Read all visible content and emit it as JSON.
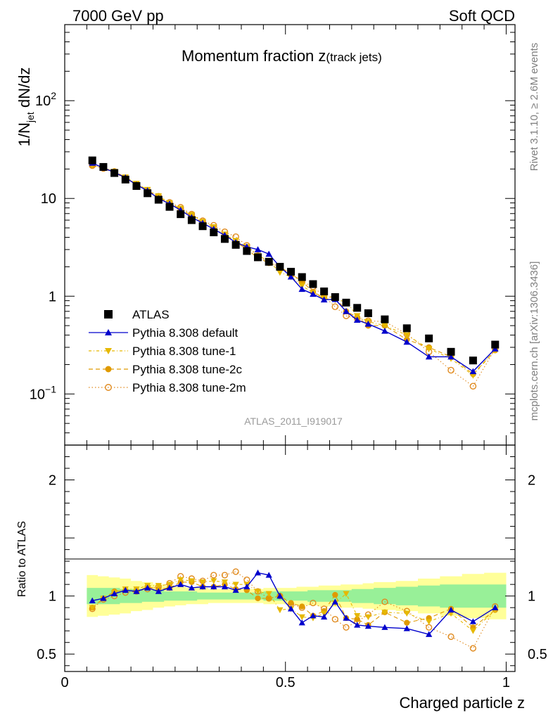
{
  "header": {
    "left": "7000 GeV pp",
    "right": "Soft QCD"
  },
  "side_labels": {
    "rivet": "Rivet 3.1.10, ≥ 2.6M events",
    "source": "mcplots.cern.ch [arXiv:1306.3436]"
  },
  "colors": {
    "atlas": "#000000",
    "default": "#0000cc",
    "tune1": "#e6b800",
    "tune2c": "#e09a00",
    "tune2m": "#e08a1e",
    "band_inner": "#98f098",
    "band_outer": "#ffff99"
  },
  "chart_data": [
    {
      "type": "scatter",
      "title": "Momentum fraction z",
      "title_sub": "(track jets)",
      "ylabel": "1/N",
      "ylabel_sub": "jet",
      "ylabel_tail": " dN/dz",
      "watermark": "ATLAS_2011_I919017",
      "yscale": "log",
      "xlim": [
        0,
        1.02
      ],
      "ylim": [
        0.03,
        600
      ],
      "y_ticks": [
        {
          "value": 100,
          "base": "10",
          "exp": "2"
        },
        {
          "value": 10,
          "base": "10",
          "exp": ""
        },
        {
          "value": 1,
          "base": "1",
          "exp": ""
        },
        {
          "value": 0.1,
          "base": "10",
          "exp": "−1"
        }
      ],
      "legend_position": "center-left",
      "x": [
        0.0625,
        0.0875,
        0.1125,
        0.1375,
        0.1625,
        0.1875,
        0.2125,
        0.2375,
        0.2625,
        0.2875,
        0.3125,
        0.3375,
        0.3625,
        0.3875,
        0.4125,
        0.4375,
        0.4625,
        0.4875,
        0.5125,
        0.5375,
        0.5625,
        0.5875,
        0.6125,
        0.6375,
        0.6625,
        0.6875,
        0.725,
        0.775,
        0.825,
        0.875,
        0.925,
        0.975
      ],
      "series": [
        {
          "name": "ATLAS",
          "key": "atlas",
          "marker": "square",
          "line": "none",
          "values": [
            24.5,
            21.0,
            18.2,
            15.6,
            13.4,
            11.3,
            9.7,
            8.2,
            6.9,
            6.0,
            5.2,
            4.5,
            3.85,
            3.35,
            2.9,
            2.5,
            2.25,
            2.0,
            1.78,
            1.57,
            1.33,
            1.12,
            0.98,
            0.86,
            0.76,
            0.67,
            0.58,
            0.47,
            0.37,
            0.27,
            0.22,
            0.32
          ]
        },
        {
          "name": "Pythia 8.308 default",
          "key": "default",
          "marker": "triangle-up",
          "line": "solid",
          "values": [
            23.0,
            20.5,
            18.5,
            16.3,
            13.8,
            12.0,
            10.0,
            8.8,
            7.6,
            6.4,
            5.6,
            4.85,
            4.2,
            3.55,
            3.2,
            3.0,
            2.7,
            2.0,
            1.58,
            1.18,
            1.05,
            0.92,
            0.93,
            0.7,
            0.57,
            0.52,
            0.44,
            0.34,
            0.24,
            0.24,
            0.17,
            0.29
          ]
        },
        {
          "name": "Pythia 8.308 tune-1",
          "key": "tune1",
          "marker": "triangle-down",
          "line": "dashdot",
          "values": [
            22.0,
            20.5,
            18.8,
            16.5,
            14.2,
            12.3,
            10.6,
            9.0,
            7.9,
            6.8,
            5.8,
            5.1,
            4.3,
            3.7,
            3.2,
            2.6,
            2.3,
            1.75,
            1.58,
            1.28,
            1.08,
            0.95,
            0.92,
            0.88,
            0.63,
            0.55,
            0.5,
            0.4,
            0.29,
            0.23,
            0.155,
            0.28
          ]
        },
        {
          "name": "Pythia 8.308 tune-2c",
          "key": "tune2c",
          "marker": "circle",
          "line": "dashed",
          "values": [
            22.0,
            20.5,
            19.0,
            16.4,
            14.0,
            12.2,
            10.3,
            8.8,
            7.7,
            6.7,
            5.6,
            4.85,
            4.25,
            3.55,
            3.05,
            2.45,
            2.2,
            2.0,
            1.68,
            1.43,
            1.1,
            0.97,
            0.99,
            0.7,
            0.61,
            0.5,
            0.5,
            0.36,
            0.3,
            0.24,
            0.16,
            0.28
          ]
        },
        {
          "name": "Pythia 8.308 tune-2m",
          "key": "tune2m",
          "marker": "circle-open",
          "line": "dotted",
          "values": [
            21.7,
            20.3,
            18.2,
            16.0,
            13.9,
            12.0,
            10.5,
            9.1,
            8.1,
            6.9,
            5.9,
            5.3,
            4.55,
            4.05,
            3.3,
            2.6,
            2.2,
            2.0,
            1.66,
            1.41,
            1.25,
            1.0,
            0.78,
            0.63,
            0.59,
            0.56,
            0.55,
            0.41,
            0.27,
            0.175,
            0.12,
            0.29
          ]
        }
      ]
    },
    {
      "type": "scatter",
      "ylabel": "Ratio to ATLAS",
      "xlabel": "Charged particle z",
      "xlim": [
        0,
        1.02
      ],
      "ylim": [
        0.35,
        2.3
      ],
      "reference_line": 1,
      "x_ticks": [
        {
          "value": 0,
          "label": "0"
        },
        {
          "value": 0.5,
          "label": "0.5"
        },
        {
          "value": 1,
          "label": "1"
        }
      ],
      "y_ticks": [
        {
          "value": 2,
          "label": "2"
        },
        {
          "value": 1,
          "label": "1"
        },
        {
          "value": 0.5,
          "label": "0.5"
        }
      ],
      "uncertainty_bands": {
        "x_edges": [
          0.05,
          0.075,
          0.1,
          0.125,
          0.15,
          0.175,
          0.2,
          0.225,
          0.25,
          0.275,
          0.3,
          0.325,
          0.35,
          0.375,
          0.4,
          0.425,
          0.45,
          0.475,
          0.5,
          0.525,
          0.55,
          0.575,
          0.6,
          0.625,
          0.65,
          0.675,
          0.7,
          0.75,
          0.8,
          0.85,
          0.9,
          0.95,
          1.0
        ],
        "inner_upper": [
          1.07,
          1.07,
          1.07,
          1.06,
          1.06,
          1.05,
          1.05,
          1.04,
          1.04,
          1.04,
          1.03,
          1.03,
          1.03,
          1.03,
          1.03,
          1.03,
          1.04,
          1.04,
          1.04,
          1.04,
          1.05,
          1.05,
          1.05,
          1.05,
          1.06,
          1.06,
          1.07,
          1.08,
          1.09,
          1.1,
          1.1,
          1.1
        ],
        "inner_lower": [
          0.93,
          0.93,
          0.93,
          0.94,
          0.94,
          0.95,
          0.95,
          0.96,
          0.96,
          0.96,
          0.97,
          0.97,
          0.97,
          0.97,
          0.97,
          0.97,
          0.96,
          0.96,
          0.96,
          0.96,
          0.95,
          0.95,
          0.95,
          0.95,
          0.94,
          0.94,
          0.93,
          0.92,
          0.91,
          0.9,
          0.9,
          0.9
        ],
        "outer_upper": [
          1.18,
          1.17,
          1.16,
          1.15,
          1.13,
          1.12,
          1.1,
          1.09,
          1.08,
          1.07,
          1.07,
          1.06,
          1.06,
          1.06,
          1.06,
          1.06,
          1.07,
          1.07,
          1.07,
          1.08,
          1.08,
          1.09,
          1.09,
          1.1,
          1.1,
          1.11,
          1.12,
          1.13,
          1.15,
          1.17,
          1.19,
          1.2
        ],
        "outer_lower": [
          0.82,
          0.83,
          0.84,
          0.85,
          0.87,
          0.88,
          0.9,
          0.91,
          0.92,
          0.93,
          0.93,
          0.94,
          0.94,
          0.94,
          0.94,
          0.94,
          0.93,
          0.93,
          0.93,
          0.92,
          0.92,
          0.91,
          0.91,
          0.9,
          0.9,
          0.89,
          0.88,
          0.87,
          0.85,
          0.83,
          0.81,
          0.8
        ]
      },
      "series": [
        {
          "name": "Pythia 8.308 default",
          "key": "default",
          "values": [
            0.96,
            0.98,
            1.02,
            1.05,
            1.04,
            1.07,
            1.04,
            1.07,
            1.1,
            1.07,
            1.08,
            1.08,
            1.08,
            1.05,
            1.08,
            1.2,
            1.18,
            1.0,
            0.89,
            0.77,
            0.83,
            0.82,
            0.95,
            0.81,
            0.75,
            0.74,
            0.73,
            0.72,
            0.67,
            0.88,
            0.78,
            0.9
          ]
        },
        {
          "name": "Pythia 8.308 tune-1",
          "key": "tune1",
          "values": [
            0.9,
            0.98,
            1.03,
            1.06,
            1.06,
            1.09,
            1.09,
            1.1,
            1.14,
            1.13,
            1.12,
            1.13,
            1.12,
            1.1,
            1.1,
            1.04,
            1.02,
            0.88,
            0.89,
            0.82,
            0.81,
            0.85,
            0.94,
            1.02,
            0.83,
            0.82,
            0.86,
            0.85,
            0.78,
            0.85,
            0.7,
            0.88
          ]
        },
        {
          "name": "Pythia 8.308 tune-2c",
          "key": "tune2c",
          "values": [
            0.9,
            0.98,
            1.04,
            1.05,
            1.04,
            1.08,
            1.06,
            1.07,
            1.12,
            1.12,
            1.08,
            1.08,
            1.1,
            1.06,
            1.05,
            0.98,
            0.98,
            1.0,
            0.94,
            0.91,
            0.83,
            0.87,
            1.01,
            0.81,
            0.8,
            0.75,
            0.86,
            0.77,
            0.81,
            0.89,
            0.73,
            0.88
          ]
        },
        {
          "name": "Pythia 8.308 tune-2m",
          "key": "tune2m",
          "values": [
            0.89,
            0.97,
            1.0,
            1.03,
            1.04,
            1.06,
            1.08,
            1.11,
            1.17,
            1.15,
            1.13,
            1.18,
            1.18,
            1.21,
            1.14,
            1.04,
            0.98,
            1.0,
            0.93,
            0.9,
            0.94,
            0.89,
            0.8,
            0.73,
            0.78,
            0.84,
            0.95,
            0.87,
            0.73,
            0.65,
            0.55,
            0.91
          ]
        }
      ]
    }
  ]
}
